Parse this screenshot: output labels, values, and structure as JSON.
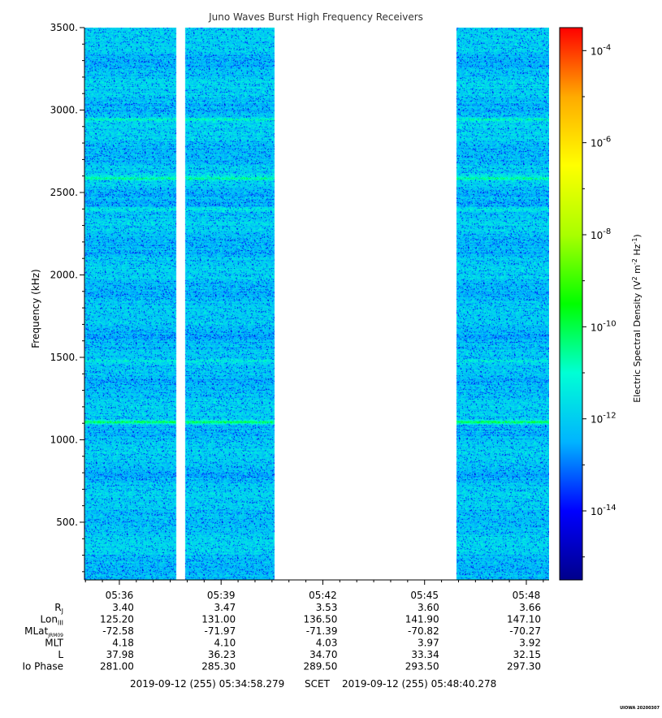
{
  "chart_data": {
    "type": "heatmap",
    "title": "Juno Waves Burst High Frequency Receivers",
    "ylabel": "Frequency (kHz)",
    "ylim": [
      150,
      3500
    ],
    "y_ticks": [
      500,
      1000,
      1500,
      2000,
      2500,
      3000,
      3500
    ],
    "y_tick_labels": [
      "500.",
      "1000.",
      "1500.",
      "2000.",
      "2500.",
      "3000.",
      "3500."
    ],
    "x_range": [
      "05:34:58.279",
      "05:48:40.278"
    ],
    "x_tick_labels": [
      "05:36",
      "05:39",
      "05:42",
      "05:45",
      "05:48"
    ],
    "data_segments": [
      [
        "05:34:58",
        "05:37:40"
      ],
      [
        "05:37:56",
        "05:40:34"
      ],
      [
        "05:45:56",
        "05:48:40"
      ]
    ],
    "bright_bands_khz": [
      {
        "freq": 1110,
        "strength": 1.0
      },
      {
        "freq": 2945,
        "strength": 0.7
      },
      {
        "freq": 2590,
        "strength": 0.65
      },
      {
        "freq": 2400,
        "strength": 0.45
      },
      {
        "freq": 1480,
        "strength": 0.3
      }
    ],
    "colorbar": {
      "label": "Electric Spectral Density (V² m⁻² Hz⁻¹)",
      "label_main": "Electric Spectral Density (V",
      "label_sup1": "2",
      "label_mid": " m",
      "label_sup2": "-2",
      "label_mid2": " Hz",
      "label_sup3": "-1",
      "label_end": ")",
      "log_min": -15.5,
      "log_max": -3.5,
      "tick_exponents": [
        -4,
        -6,
        -8,
        -10,
        -12,
        -14
      ],
      "tick_base": "10",
      "tick_sups": [
        "-4",
        "-6",
        "-8",
        "-10",
        "-12",
        "-14"
      ],
      "colors": [
        "#00008b",
        "#0000ff",
        "#00b4ff",
        "#00ffd5",
        "#00ff00",
        "#aaff00",
        "#ffff00",
        "#ffaa00",
        "#ff0000"
      ]
    },
    "ephemeris": {
      "rows": [
        {
          "label": "R",
          "sub": "J",
          "values": [
            "3.40",
            "3.47",
            "3.53",
            "3.60",
            "3.66"
          ]
        },
        {
          "label": "Lon",
          "sub": "III",
          "values": [
            "125.20",
            "131.00",
            "136.50",
            "141.90",
            "147.10"
          ]
        },
        {
          "label": "MLat",
          "sub": "JRM09",
          "values": [
            "-72.58",
            "-71.97",
            "-71.39",
            "-70.82",
            "-70.27"
          ]
        },
        {
          "label": "MLT",
          "sub": "",
          "values": [
            "4.18",
            "4.10",
            "4.03",
            "3.97",
            "3.92"
          ]
        },
        {
          "label": "L",
          "sub": "",
          "values": [
            "37.98",
            "36.23",
            "34.70",
            "33.34",
            "32.15"
          ]
        },
        {
          "label": "Io Phase",
          "sub": "",
          "values": [
            "281.00",
            "285.30",
            "289.50",
            "293.50",
            "297.30"
          ]
        }
      ]
    },
    "footer": {
      "start": "2019-09-12 (255) 05:34:58.279",
      "scet": "SCET",
      "end": "2019-09-12 (255) 05:48:40.278"
    },
    "credit": "UIOWA 20200307"
  }
}
